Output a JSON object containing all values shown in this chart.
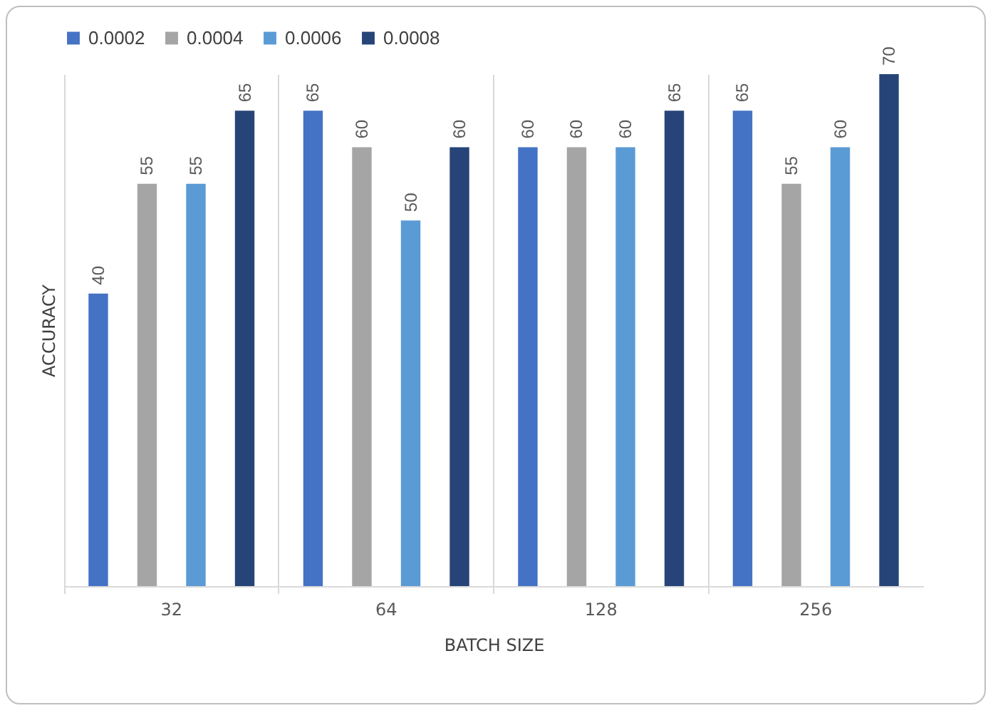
{
  "chart_data": {
    "type": "bar",
    "xlabel": "BATCH SIZE",
    "ylabel": "ACCURACY",
    "categories": [
      "32",
      "64",
      "128",
      "256"
    ],
    "series": [
      {
        "name": "0.0002",
        "color": "#4472c4",
        "values": [
          40,
          65,
          60,
          65
        ]
      },
      {
        "name": "0.0004",
        "color": "#a5a5a5",
        "values": [
          55,
          60,
          60,
          55
        ]
      },
      {
        "name": "0.0006",
        "color": "#5b9bd5",
        "values": [
          55,
          50,
          60,
          60
        ]
      },
      {
        "name": "0.0008",
        "color": "#264478",
        "values": [
          65,
          60,
          65,
          70
        ]
      }
    ],
    "data_labels": true,
    "legend": "top",
    "grid": "x",
    "tick_labels": "x"
  }
}
